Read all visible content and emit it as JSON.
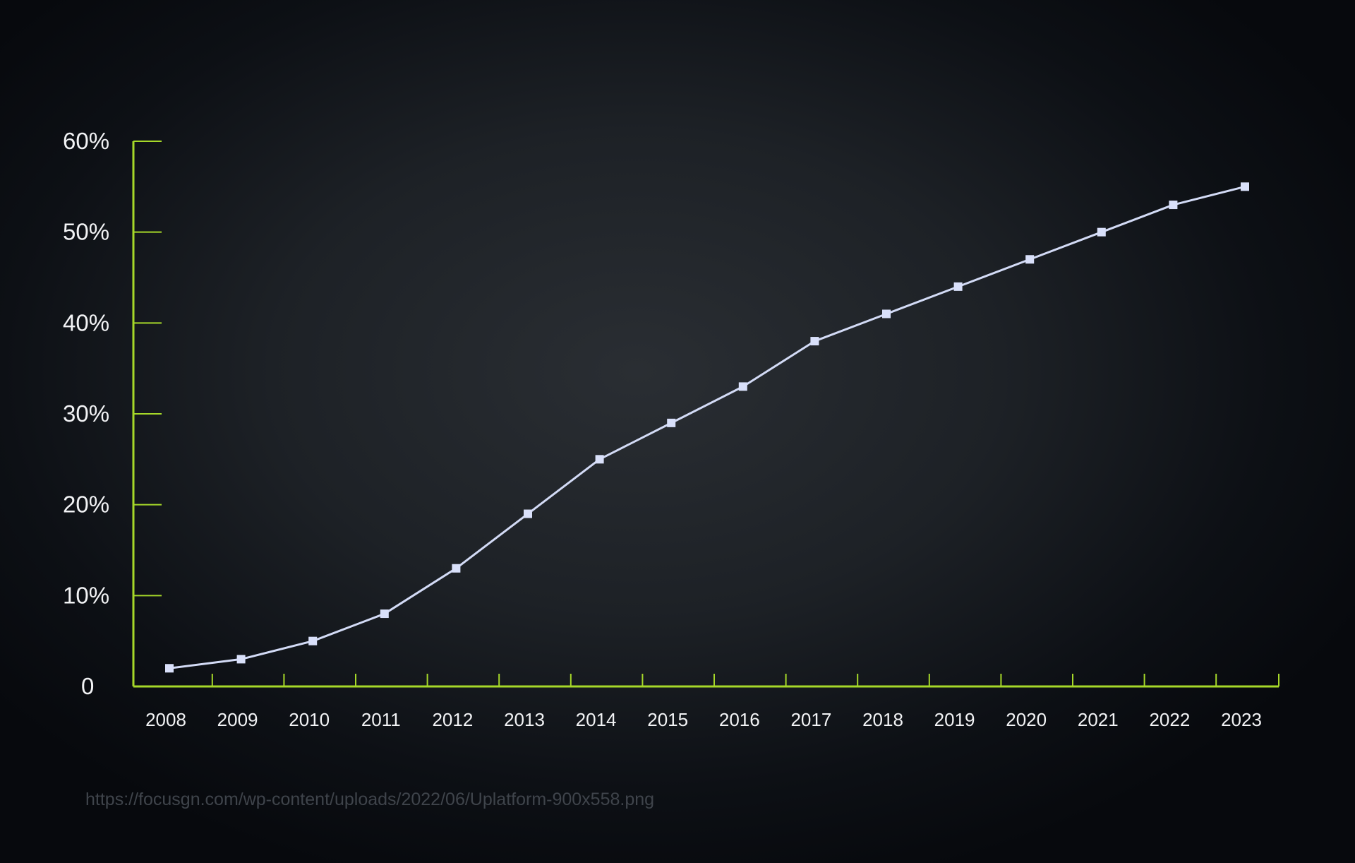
{
  "chart_data": {
    "type": "line",
    "title": "",
    "xlabel": "",
    "ylabel": "",
    "x": [
      "2008",
      "2009",
      "2010",
      "2011",
      "2012",
      "2013",
      "2014",
      "2015",
      "2016",
      "2017",
      "2018",
      "2019",
      "2020",
      "2021",
      "2022",
      "2023"
    ],
    "series": [
      {
        "values": [
          2,
          3,
          5,
          8,
          13,
          19,
          25,
          29,
          33,
          38,
          41,
          44,
          47,
          50,
          53,
          55
        ]
      }
    ],
    "y_ticks": [
      {
        "value": 0,
        "label": "0"
      },
      {
        "value": 10,
        "label": "10%"
      },
      {
        "value": 20,
        "label": "20%"
      },
      {
        "value": 30,
        "label": "30%"
      },
      {
        "value": 40,
        "label": "40%"
      },
      {
        "value": 50,
        "label": "50%"
      },
      {
        "value": 60,
        "label": "60%"
      }
    ],
    "ylim": [
      0,
      60
    ],
    "grid": false,
    "legend": "none",
    "colors": {
      "axis": "#a6d829",
      "line": "#d3dbf6",
      "marker": "#d9e0fa",
      "tick_label": "#f2f3f5"
    }
  },
  "source_url": "https://focusgn.com/wp-content/uploads/2022/06/Uplatform-900x558.png"
}
